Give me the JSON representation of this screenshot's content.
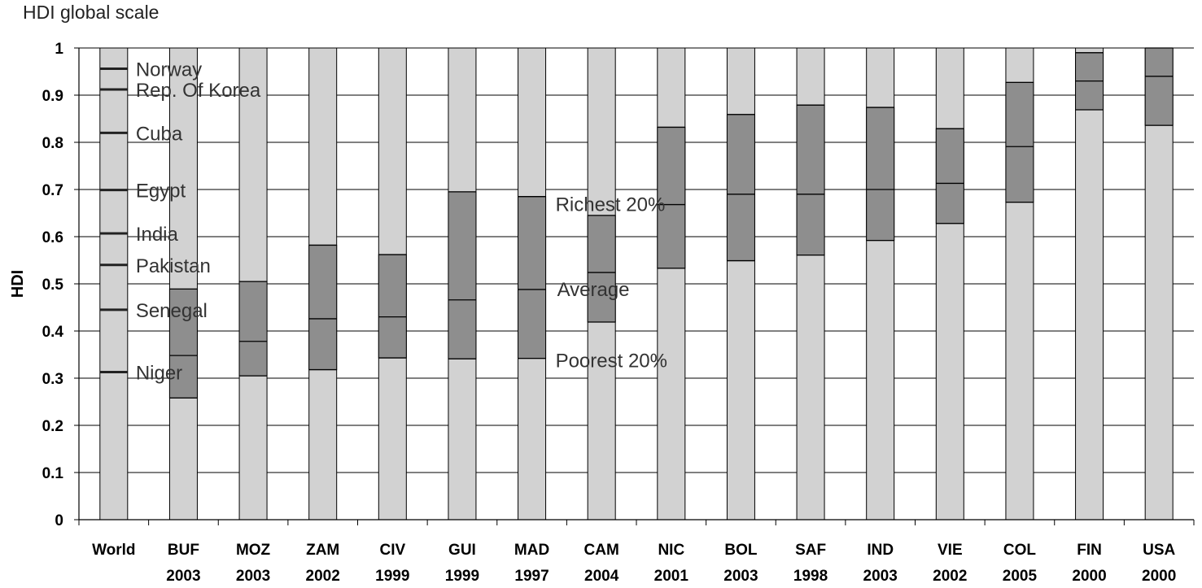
{
  "chart_data": {
    "type": "bar",
    "title": "HDI global scale",
    "ylabel": "HDI",
    "xlabel": "",
    "ylim": [
      0,
      1
    ],
    "yticks": [
      "0",
      "0.1",
      "0.2",
      "0.3",
      "0.4",
      "0.5",
      "0.6",
      "0.7",
      "0.8",
      "0.9",
      "1"
    ],
    "grid": true,
    "categories": [
      [
        "World",
        ""
      ],
      [
        "BUF",
        "2003"
      ],
      [
        "MOZ",
        "2003"
      ],
      [
        "ZAM",
        "2002"
      ],
      [
        "CIV",
        "1999"
      ],
      [
        "GUI",
        "1999"
      ],
      [
        "MAD",
        "1997"
      ],
      [
        "CAM",
        "2004"
      ],
      [
        "NIC",
        "2001"
      ],
      [
        "BOL",
        "2003"
      ],
      [
        "SAF",
        "1998"
      ],
      [
        "IND",
        "2003"
      ],
      [
        "VIE",
        "2002"
      ],
      [
        "COL",
        "2005"
      ],
      [
        "FIN",
        "2000"
      ],
      [
        "USA",
        "2000"
      ]
    ],
    "series": [
      {
        "name": "Poorest 20%",
        "values": [
          null,
          0.258,
          0.305,
          0.318,
          0.343,
          0.341,
          0.342,
          0.419,
          0.533,
          0.549,
          0.561,
          0.592,
          0.628,
          0.673,
          0.869,
          0.836
        ]
      },
      {
        "name": "Average",
        "values": [
          null,
          0.348,
          0.378,
          0.426,
          0.43,
          0.466,
          0.488,
          0.524,
          0.668,
          0.69,
          0.69,
          0.7,
          0.713,
          0.791,
          0.93,
          0.94
        ]
      },
      {
        "name": "Richest 20%",
        "values": [
          null,
          0.489,
          0.505,
          0.582,
          0.562,
          0.695,
          0.685,
          0.645,
          0.832,
          0.859,
          0.879,
          0.874,
          0.829,
          0.927,
          0.99,
          1.0
        ]
      }
    ],
    "world_markers": [
      {
        "label": "Norway",
        "value": 0.956
      },
      {
        "label": "Rep. Of Korea",
        "value": 0.912
      },
      {
        "label": "Cuba",
        "value": 0.82
      },
      {
        "label": "Egypt",
        "value": 0.699
      },
      {
        "label": "India",
        "value": 0.607
      },
      {
        "label": "Pakistan",
        "value": 0.54
      },
      {
        "label": "Senegal",
        "value": 0.445
      },
      {
        "label": "Niger",
        "value": 0.313
      }
    ],
    "annotations": [
      "Richest 20%",
      "Average",
      "Poorest 20%"
    ],
    "colors": {
      "light": "#d2d2d2",
      "dark": "#8e8e8e",
      "line": "#000000",
      "grid": "#000000"
    }
  }
}
